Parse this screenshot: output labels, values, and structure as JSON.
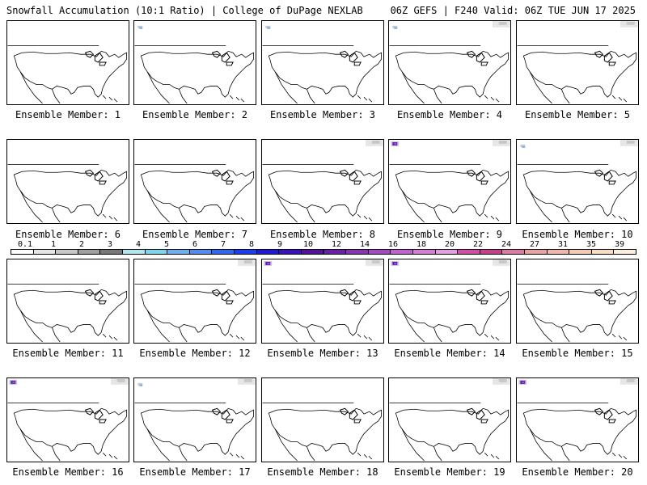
{
  "header": {
    "left_title": "Snowfall Accumulation (10:1 Ratio) | College of DuPage NEXLAB",
    "right_title": "06Z GEFS | F240 Valid: 06Z TUE JUN 17 2025"
  },
  "member_prefix": "Ensemble Member: ",
  "members": [
    {
      "label": "Ensemble Member: 1",
      "snow": []
    },
    {
      "label": "Ensemble Member: 2",
      "snow": [
        "pnw-light"
      ]
    },
    {
      "label": "Ensemble Member: 3",
      "snow": [
        "pnw-light"
      ]
    },
    {
      "label": "Ensemble Member: 4",
      "snow": [
        "pnw-light",
        "canada-north"
      ]
    },
    {
      "label": "Ensemble Member: 5",
      "snow": [
        "canada-north"
      ]
    },
    {
      "label": "Ensemble Member: 6",
      "snow": []
    },
    {
      "label": "Ensemble Member: 7",
      "snow": []
    },
    {
      "label": "Ensemble Member: 8",
      "snow": [
        "canada-north"
      ]
    },
    {
      "label": "Ensemble Member: 9",
      "snow": [
        "pnw-heavy",
        "canada-north"
      ]
    },
    {
      "label": "Ensemble Member: 10",
      "snow": [
        "pnw-light",
        "canada-north"
      ]
    },
    {
      "label": "Ensemble Member: 11",
      "snow": []
    },
    {
      "label": "Ensemble Member: 12",
      "snow": [
        "canada-north"
      ]
    },
    {
      "label": "Ensemble Member: 13",
      "snow": [
        "pnw-heavy",
        "canada-north"
      ]
    },
    {
      "label": "Ensemble Member: 14",
      "snow": [
        "pnw-heavy",
        "canada-north"
      ]
    },
    {
      "label": "Ensemble Member: 15",
      "snow": []
    },
    {
      "label": "Ensemble Member: 16",
      "snow": [
        "pnw-heavy",
        "canada-north"
      ]
    },
    {
      "label": "Ensemble Member: 17",
      "snow": [
        "pnw-light",
        "canada-north"
      ]
    },
    {
      "label": "Ensemble Member: 18",
      "snow": []
    },
    {
      "label": "Ensemble Member: 19",
      "snow": [
        "canada-north"
      ]
    },
    {
      "label": "Ensemble Member: 20",
      "snow": [
        "pnw-heavy",
        "canada-north"
      ]
    }
  ],
  "colorbar": {
    "labels": [
      "0.1",
      "1",
      "2",
      "3",
      "4",
      "5",
      "6",
      "7",
      "8",
      "9",
      "10",
      "12",
      "14",
      "16",
      "18",
      "20",
      "22",
      "24",
      "27",
      "31",
      "35",
      "39"
    ],
    "colors": [
      "#ffffff",
      "#e6e6e6",
      "#c8c8c8",
      "#a0a0a0",
      "#787878",
      "#aee8f0",
      "#7ad8ee",
      "#6ab2f2",
      "#4f8ef5",
      "#2d68f3",
      "#1b3ff0",
      "#2218d8",
      "#3a0fbf",
      "#55109e",
      "#6a1fa8",
      "#8a33b5",
      "#a64ac4",
      "#c062d1",
      "#d47ed8",
      "#e19ee1",
      "#d34ea6",
      "#c63f8d",
      "#dc7ba3",
      "#e8a2a2",
      "#f0b8a8",
      "#f4cbb5",
      "#f8dcc4",
      "#fdeedb"
    ],
    "accent_heavy": "#3f1fd0",
    "accent_pink": "#e23fae"
  }
}
